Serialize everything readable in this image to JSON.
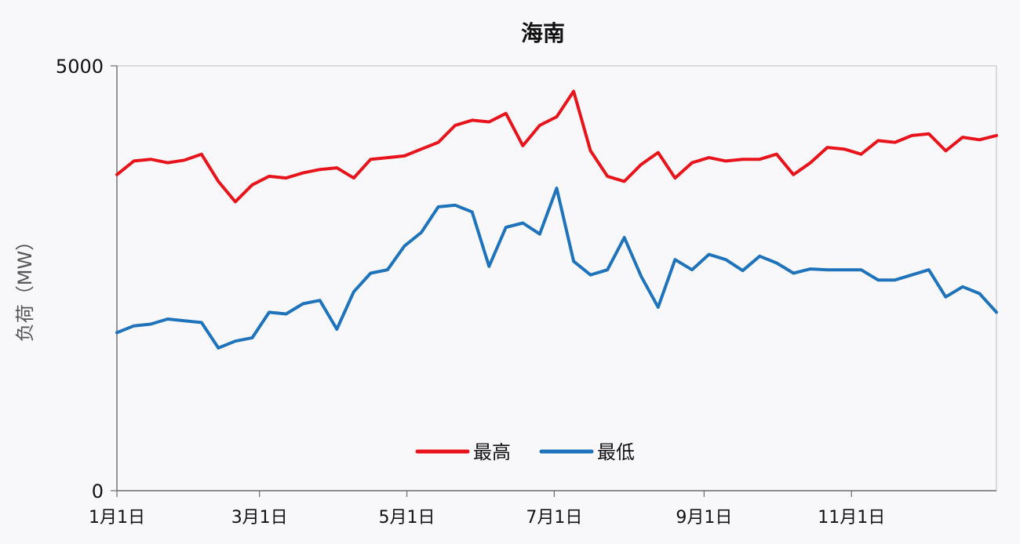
{
  "chart_data": {
    "type": "line",
    "title": "海南",
    "xlabel": "",
    "ylabel": "负荷（MW）",
    "ylim": [
      0,
      5000
    ],
    "yticks": [
      "5000",
      "0"
    ],
    "xticks": [
      {
        "label": "1月1日",
        "day": 1
      },
      {
        "label": "3月1日",
        "day": 60
      },
      {
        "label": "5月1日",
        "day": 121
      },
      {
        "label": "7月1日",
        "day": 182
      },
      {
        "label": "9月1日",
        "day": 244
      },
      {
        "label": "11月1日",
        "day": 305
      }
    ],
    "x": [
      1,
      8,
      15,
      22,
      29,
      36,
      43,
      50,
      57,
      64,
      71,
      78,
      85,
      92,
      99,
      106,
      113,
      120,
      127,
      134,
      141,
      148,
      155,
      162,
      169,
      176,
      183,
      190,
      197,
      204,
      211,
      218,
      225,
      232,
      239,
      246,
      253,
      260,
      267,
      274,
      281,
      288,
      295,
      302,
      309,
      316,
      323,
      330,
      337,
      344,
      351,
      358,
      365
    ],
    "series": [
      {
        "name": "最高",
        "color": "#e8141b",
        "values": [
          3720,
          3880,
          3900,
          3860,
          3890,
          3960,
          3640,
          3400,
          3600,
          3700,
          3680,
          3740,
          3780,
          3800,
          3680,
          3900,
          3920,
          3940,
          4020,
          4100,
          4300,
          4360,
          4340,
          4440,
          4060,
          4300,
          4400,
          4700,
          4000,
          3700,
          3640,
          3840,
          3980,
          3680,
          3860,
          3920,
          3880,
          3900,
          3900,
          3960,
          3720,
          3860,
          4040,
          4020,
          3960,
          4120,
          4100,
          4180,
          4200,
          4000,
          4160,
          4130,
          4180
        ]
      },
      {
        "name": "最低",
        "color": "#1f73bb",
        "values": [
          1860,
          1940,
          1960,
          2020,
          2000,
          1980,
          1680,
          1760,
          1800,
          2100,
          2080,
          2200,
          2240,
          1900,
          2340,
          2560,
          2600,
          2880,
          3040,
          3340,
          3360,
          3280,
          2640,
          3100,
          3150,
          3020,
          3560,
          2700,
          2540,
          2600,
          2980,
          2520,
          2160,
          2720,
          2600,
          2780,
          2720,
          2590,
          2760,
          2680,
          2560,
          2610,
          2600,
          2600,
          2600,
          2480,
          2480,
          2540,
          2600,
          2280,
          2400,
          2320,
          2100
        ]
      }
    ],
    "legend": {
      "position": "bottom-center",
      "items": [
        {
          "label": "最高",
          "color": "#e8141b"
        },
        {
          "label": "最低",
          "color": "#1f73bb"
        }
      ]
    },
    "grid": false
  }
}
